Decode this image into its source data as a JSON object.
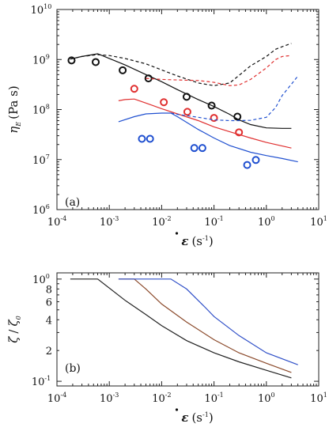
{
  "chart_data": [
    {
      "type": "scatter",
      "panel_label": "(a)",
      "xlabel_base": "ε",
      "xlabel_unit": "(s",
      "xlabel_exp": "-1",
      "xlabel_close": ")",
      "ylabel_base": "η",
      "ylabel_sub": "E",
      "ylabel_unit": "(Pa s)",
      "x_scale": "log",
      "y_scale": "log",
      "xlim": [
        0.0001,
        10
      ],
      "ylim": [
        1000000,
        10000000000
      ],
      "x_ticks": [
        {
          "base": "10",
          "exp": "-4",
          "value": 0.0001
        },
        {
          "base": "10",
          "exp": "-3",
          "value": 0.001
        },
        {
          "base": "10",
          "exp": "-2",
          "value": 0.01
        },
        {
          "base": "10",
          "exp": "-1",
          "value": 0.1
        },
        {
          "base": "10",
          "exp": "0",
          "value": 1
        },
        {
          "base": "10",
          "exp": "1",
          "value": 10
        }
      ],
      "y_ticks": [
        {
          "base": "10",
          "exp": "6",
          "value": 1000000
        },
        {
          "base": "10",
          "exp": "7",
          "value": 10000000
        },
        {
          "base": "10",
          "exp": "8",
          "value": 100000000
        },
        {
          "base": "10",
          "exp": "9",
          "value": 1000000000
        },
        {
          "base": "10",
          "exp": "10",
          "value": 10000000000
        }
      ],
      "series": [
        {
          "style": "markers",
          "color": "#111111",
          "x": [
            0.00019,
            0.00055,
            0.0018,
            0.0056,
            0.03,
            0.09,
            0.28
          ],
          "y": [
            960000000,
            890000000,
            610000000,
            420000000,
            180000000,
            120000000,
            72000000
          ]
        },
        {
          "style": "markers",
          "color": "#e03030",
          "x": [
            0.003,
            0.011,
            0.031,
            0.1,
            0.3
          ],
          "y": [
            260000000,
            140000000,
            90000000,
            68000000,
            35000000
          ]
        },
        {
          "style": "markers",
          "color": "#2050d0",
          "x": [
            0.0042,
            0.006,
            0.042,
            0.06,
            0.43,
            0.63
          ],
          "y": [
            26000000,
            26000000,
            17000000,
            17000000,
            7800000,
            9800000
          ]
        },
        {
          "style": "solid",
          "color": "#111111",
          "x": [
            0.00018,
            0.0003,
            0.0006,
            0.001,
            0.002,
            0.005,
            0.01,
            0.02,
            0.05,
            0.1,
            0.2,
            0.3,
            0.5,
            1,
            2,
            3
          ],
          "y": [
            1020000000,
            1150000000,
            1300000000,
            1050000000,
            780000000,
            500000000,
            360000000,
            250000000,
            158000000,
            115000000,
            80000000,
            62000000,
            50000000,
            43000000,
            42000000,
            42000000
          ]
        },
        {
          "style": "solid",
          "color": "#e03030",
          "x": [
            0.0015,
            0.002,
            0.003,
            0.005,
            0.01,
            0.02,
            0.05,
            0.1,
            0.2,
            0.5,
            1,
            3
          ],
          "y": [
            150000000,
            158000000,
            162000000,
            135000000,
            104000000,
            82000000,
            60000000,
            45000000,
            36000000,
            27000000,
            22000000,
            17000000
          ]
        },
        {
          "style": "solid",
          "color": "#2050d0",
          "x": [
            0.0015,
            0.003,
            0.005,
            0.01,
            0.015,
            0.02,
            0.05,
            0.1,
            0.2,
            0.5,
            1,
            2,
            4
          ],
          "y": [
            57000000,
            72000000,
            82000000,
            85000000,
            85000000,
            72000000,
            40000000,
            27000000,
            19000000,
            14000000,
            12000000,
            10500000,
            9000000
          ]
        },
        {
          "style": "dashed",
          "color": "#111111",
          "x": [
            0.00018,
            0.0003,
            0.0006,
            0.001,
            0.002,
            0.005,
            0.01,
            0.02,
            0.05,
            0.1,
            0.2,
            0.3,
            0.5,
            1,
            1.5,
            2,
            3
          ],
          "y": [
            1020000000,
            1150000000,
            1250000000,
            1200000000,
            1050000000,
            820000000,
            620000000,
            470000000,
            340000000,
            300000000,
            340000000,
            480000000,
            750000000,
            1150000000,
            1600000000,
            1800000000,
            2100000000
          ]
        },
        {
          "style": "dashed",
          "color": "#e03030",
          "x": [
            0.005,
            0.01,
            0.02,
            0.05,
            0.1,
            0.2,
            0.3,
            0.5,
            1,
            1.5,
            2,
            3
          ],
          "y": [
            420000000,
            400000000,
            390000000,
            380000000,
            350000000,
            300000000,
            310000000,
            400000000,
            680000000,
            1000000000,
            1150000000,
            1200000000
          ]
        },
        {
          "style": "dashed",
          "color": "#2050d0",
          "x": [
            0.015,
            0.02,
            0.05,
            0.1,
            0.2,
            0.3,
            0.5,
            1,
            1.5,
            2,
            3,
            4
          ],
          "y": [
            85000000,
            80000000,
            70000000,
            62000000,
            60000000,
            60000000,
            61000000,
            70000000,
            110000000,
            190000000,
            320000000,
            470000000
          ]
        }
      ]
    },
    {
      "type": "line",
      "panel_label": "(b)",
      "xlabel_base": "ε",
      "xlabel_unit": "(s",
      "xlabel_exp": "-1",
      "xlabel_close": ")",
      "ylabel_base": "ζ",
      "ylabel_sep": "/",
      "ylabel_base2": "ζ",
      "ylabel_sub2": "0",
      "x_scale": "log",
      "y_scale": "log",
      "xlim": [
        0.0001,
        10
      ],
      "ylim": [
        0.09,
        1.15
      ],
      "x_ticks": [
        {
          "base": "10",
          "exp": "-4",
          "value": 0.0001
        },
        {
          "base": "10",
          "exp": "-3",
          "value": 0.001
        },
        {
          "base": "10",
          "exp": "-2",
          "value": 0.01
        },
        {
          "base": "10",
          "exp": "-1",
          "value": 0.1
        },
        {
          "base": "10",
          "exp": "0",
          "value": 1
        },
        {
          "base": "10",
          "exp": "1",
          "value": 10
        }
      ],
      "y_ticks": [
        {
          "base": "10",
          "exp": "-1",
          "value": 0.1
        },
        {
          "label": "2",
          "value": 0.2
        },
        {
          "label": "4",
          "value": 0.4
        },
        {
          "label": "6",
          "value": 0.6
        },
        {
          "label": "8",
          "value": 0.8
        },
        {
          "base": "10",
          "exp": "0",
          "value": 1
        }
      ],
      "series": [
        {
          "style": "solid",
          "color": "#222222",
          "x": [
            0.00018,
            0.0006,
            0.002,
            0.005,
            0.01,
            0.03,
            0.1,
            0.3,
            1,
            3
          ],
          "y": [
            1.0,
            1.0,
            0.62,
            0.45,
            0.35,
            0.25,
            0.19,
            0.155,
            0.128,
            0.108
          ]
        },
        {
          "style": "solid",
          "color": "#8b4a2b",
          "x": [
            0.0015,
            0.003,
            0.005,
            0.01,
            0.03,
            0.1,
            0.3,
            1,
            3
          ],
          "y": [
            1.0,
            1.0,
            0.8,
            0.57,
            0.38,
            0.255,
            0.19,
            0.15,
            0.122
          ]
        },
        {
          "style": "solid",
          "color": "#3050c8",
          "x": [
            0.0015,
            0.005,
            0.015,
            0.03,
            0.07,
            0.1,
            0.3,
            1,
            4
          ],
          "y": [
            1.0,
            1.0,
            1.0,
            0.8,
            0.52,
            0.43,
            0.28,
            0.19,
            0.145
          ]
        }
      ]
    }
  ]
}
